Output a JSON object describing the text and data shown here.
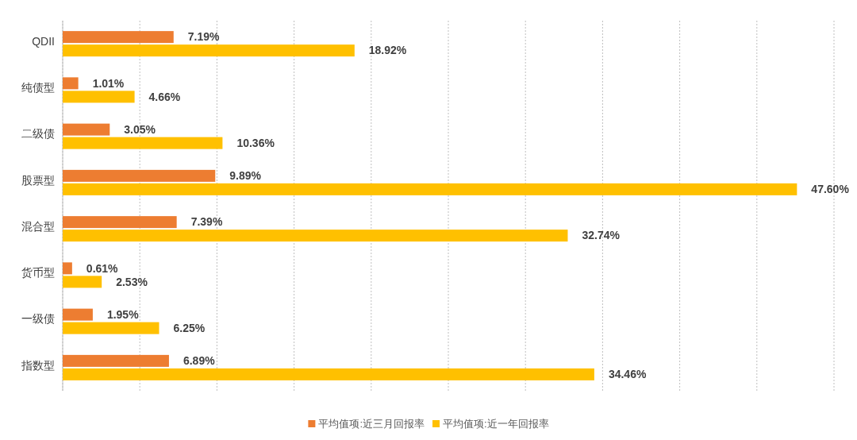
{
  "chart_data": {
    "type": "bar",
    "orientation": "horizontal",
    "categories": [
      "QDII",
      "纯债型",
      "二级债",
      "股票型",
      "混合型",
      "货币型",
      "一级债",
      "指数型"
    ],
    "series": [
      {
        "name": "平均值项:近三月回报率",
        "color": "#ed7d31",
        "values": [
          7.19,
          1.01,
          3.05,
          9.89,
          7.39,
          0.61,
          1.95,
          6.89
        ],
        "value_labels": [
          "7.19%",
          "1.01%",
          "3.05%",
          "9.89%",
          "7.39%",
          "0.61%",
          "1.95%",
          "6.89%"
        ]
      },
      {
        "name": "平均值项:近一年回报率",
        "color": "#ffc000",
        "values": [
          18.92,
          4.66,
          10.36,
          47.6,
          32.74,
          2.53,
          6.25,
          34.46
        ],
        "value_labels": [
          "18.92%",
          "4.66%",
          "10.36%",
          "47.60%",
          "32.74%",
          "2.53%",
          "6.25%",
          "34.46%"
        ]
      }
    ],
    "grid": "x",
    "tick_labels": "y",
    "legend": "bottom"
  }
}
